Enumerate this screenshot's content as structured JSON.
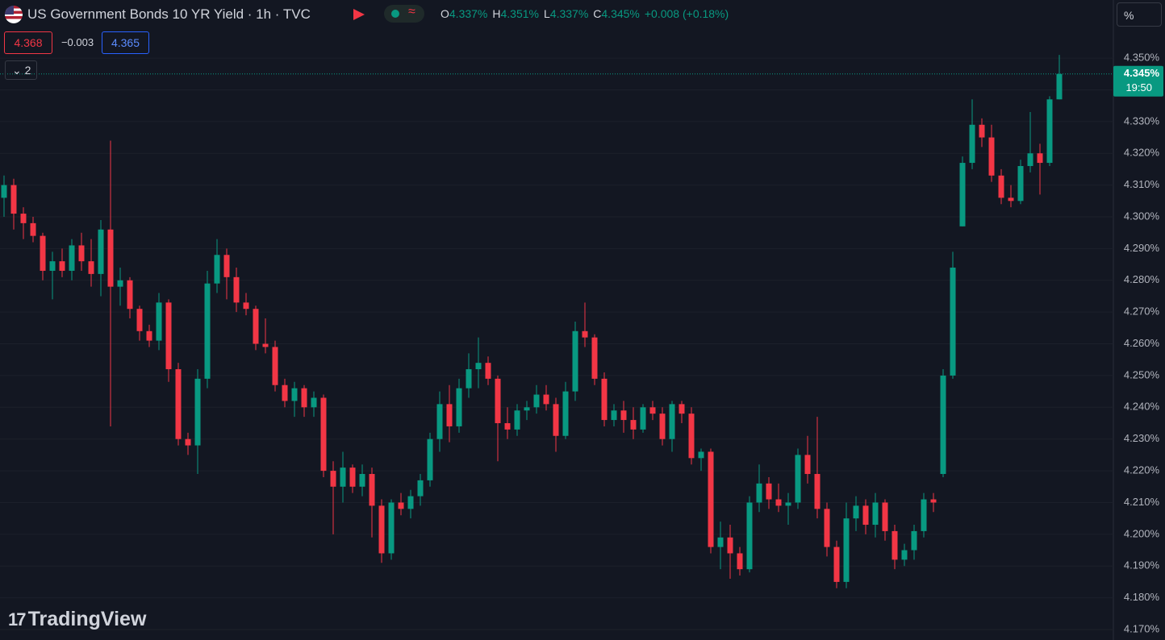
{
  "chart_data": {
    "type": "candlestick",
    "title": "US Government Bonds 10 YR Yield · 1h · TVC",
    "legend": [
      {
        "label": "O",
        "value": "4.337%"
      },
      {
        "label": "H",
        "value": "4.351%"
      },
      {
        "label": "L",
        "value": "4.337%"
      },
      {
        "label": "C",
        "value": "4.345%"
      }
    ],
    "change": "+0.008 (+0.18%)",
    "sell_price": "4.368",
    "spread": "−0.003",
    "buy_price": "4.365",
    "indicator_count": "2",
    "unit": "%",
    "last_price_label": "4.345%",
    "countdown": "19:50",
    "watermark": "TradingView",
    "up_color": "#089981",
    "down_color": "#f23645",
    "grid": true,
    "ylim": [
      4.1667,
      4.3683
    ],
    "yticks": [
      {
        "value": 4.17,
        "label": "4.170%"
      },
      {
        "value": 4.18,
        "label": "4.180%"
      },
      {
        "value": 4.19,
        "label": "4.190%"
      },
      {
        "value": 4.2,
        "label": "4.200%"
      },
      {
        "value": 4.21,
        "label": "4.210%"
      },
      {
        "value": 4.22,
        "label": "4.220%"
      },
      {
        "value": 4.23,
        "label": "4.230%"
      },
      {
        "value": 4.24,
        "label": "4.240%"
      },
      {
        "value": 4.25,
        "label": "4.250%"
      },
      {
        "value": 4.26,
        "label": "4.260%"
      },
      {
        "value": 4.27,
        "label": "4.270%"
      },
      {
        "value": 4.28,
        "label": "4.280%"
      },
      {
        "value": 4.29,
        "label": "4.290%"
      },
      {
        "value": 4.3,
        "label": "4.300%"
      },
      {
        "value": 4.31,
        "label": "4.310%"
      },
      {
        "value": 4.32,
        "label": "4.320%"
      },
      {
        "value": 4.33,
        "label": "4.330%"
      },
      {
        "value": 4.34,
        "label": "4.340%"
      },
      {
        "value": 4.35,
        "label": "4.350%"
      }
    ],
    "last_price": 4.345,
    "open": [
      4.306,
      4.31,
      4.301,
      4.298,
      4.294,
      4.283,
      4.286,
      4.283,
      4.291,
      4.286,
      4.282,
      4.296,
      4.278,
      4.28,
      4.271,
      4.264,
      4.261,
      4.273,
      4.252,
      4.23,
      4.228,
      4.249,
      4.279,
      4.288,
      4.281,
      4.273,
      4.271,
      4.26,
      4.259,
      4.247,
      4.242,
      4.246,
      4.24,
      4.243,
      4.22,
      4.215,
      4.221,
      4.215,
      4.219,
      4.209,
      4.194,
      4.21,
      4.208,
      4.212,
      4.217,
      4.23,
      4.241,
      4.234,
      4.246,
      4.252,
      4.254,
      4.249,
      4.235,
      4.233,
      4.239,
      4.24,
      4.244,
      4.241,
      4.231,
      4.245,
      4.264,
      4.262,
      4.249,
      4.236,
      4.239,
      4.236,
      4.233,
      4.24,
      4.238,
      4.23,
      4.241,
      4.238,
      4.224,
      4.226,
      4.196,
      4.199,
      4.194,
      4.189,
      4.21,
      4.216,
      4.211,
      4.209,
      4.21,
      4.225,
      4.219,
      4.208,
      4.196,
      4.185,
      4.205,
      4.209,
      4.203,
      4.21,
      4.201,
      4.192,
      4.195,
      4.201,
      4.211,
      4.219,
      4.25,
      4.297,
      4.317,
      4.329,
      4.325,
      4.313,
      4.306,
      4.305,
      4.316,
      4.32,
      4.317,
      4.337
    ],
    "high": [
      4.313,
      4.312,
      4.303,
      4.3,
      4.295,
      4.289,
      4.29,
      4.293,
      4.295,
      4.293,
      4.299,
      4.324,
      4.284,
      4.281,
      4.272,
      4.266,
      4.276,
      4.274,
      4.254,
      4.232,
      4.252,
      4.283,
      4.293,
      4.29,
      4.284,
      4.276,
      4.272,
      4.268,
      4.261,
      4.249,
      4.248,
      4.247,
      4.245,
      4.244,
      4.223,
      4.226,
      4.222,
      4.222,
      4.221,
      4.211,
      4.211,
      4.213,
      4.214,
      4.219,
      4.232,
      4.245,
      4.247,
      4.249,
      4.257,
      4.262,
      4.256,
      4.25,
      4.24,
      4.241,
      4.242,
      4.247,
      4.247,
      4.243,
      4.248,
      4.267,
      4.273,
      4.263,
      4.251,
      4.241,
      4.242,
      4.24,
      4.241,
      4.242,
      4.24,
      4.242,
      4.242,
      4.24,
      4.227,
      4.227,
      4.204,
      4.203,
      4.196,
      4.212,
      4.222,
      4.218,
      4.216,
      4.213,
      4.227,
      4.231,
      4.237,
      4.21,
      4.198,
      4.21,
      4.212,
      4.211,
      4.213,
      4.211,
      4.203,
      4.197,
      4.203,
      4.213,
      4.213,
      4.252,
      4.289,
      4.319,
      4.337,
      4.331,
      4.329,
      4.315,
      4.31,
      4.318,
      4.333,
      4.323,
      4.338,
      4.351
    ],
    "low": [
      4.3,
      4.296,
      4.293,
      4.292,
      4.28,
      4.274,
      4.281,
      4.28,
      4.283,
      4.278,
      4.275,
      4.234,
      4.272,
      4.268,
      4.261,
      4.259,
      4.258,
      4.248,
      4.228,
      4.225,
      4.219,
      4.246,
      4.276,
      4.274,
      4.27,
      4.269,
      4.258,
      4.257,
      4.245,
      4.24,
      4.237,
      4.237,
      4.237,
      4.218,
      4.2,
      4.21,
      4.213,
      4.212,
      4.199,
      4.191,
      4.192,
      4.206,
      4.205,
      4.209,
      4.215,
      4.226,
      4.229,
      4.232,
      4.243,
      4.246,
      4.247,
      4.223,
      4.23,
      4.231,
      4.236,
      4.238,
      4.239,
      4.226,
      4.23,
      4.242,
      4.259,
      4.247,
      4.234,
      4.234,
      4.232,
      4.23,
      4.232,
      4.236,
      4.228,
      4.226,
      4.235,
      4.222,
      4.22,
      4.194,
      4.189,
      4.186,
      4.187,
      4.188,
      4.207,
      4.208,
      4.207,
      4.203,
      4.208,
      4.216,
      4.205,
      4.193,
      4.183,
      4.183,
      4.201,
      4.2,
      4.199,
      4.198,
      4.189,
      4.19,
      4.192,
      4.199,
      4.207,
      4.218,
      4.249,
      4.297,
      4.315,
      4.322,
      4.311,
      4.304,
      4.303,
      4.304,
      4.314,
      4.307,
      4.316,
      4.337
    ],
    "close": [
      4.31,
      4.301,
      4.298,
      4.294,
      4.283,
      4.286,
      4.283,
      4.291,
      4.286,
      4.282,
      4.296,
      4.278,
      4.28,
      4.271,
      4.264,
      4.261,
      4.273,
      4.252,
      4.23,
      4.228,
      4.249,
      4.279,
      4.288,
      4.281,
      4.273,
      4.271,
      4.26,
      4.259,
      4.247,
      4.242,
      4.246,
      4.24,
      4.243,
      4.22,
      4.215,
      4.221,
      4.215,
      4.219,
      4.209,
      4.194,
      4.21,
      4.208,
      4.212,
      4.217,
      4.23,
      4.241,
      4.234,
      4.246,
      4.252,
      4.254,
      4.249,
      4.235,
      4.233,
      4.239,
      4.24,
      4.244,
      4.241,
      4.231,
      4.245,
      4.264,
      4.262,
      4.249,
      4.236,
      4.239,
      4.236,
      4.233,
      4.24,
      4.238,
      4.23,
      4.241,
      4.238,
      4.224,
      4.226,
      4.196,
      4.199,
      4.194,
      4.189,
      4.21,
      4.216,
      4.211,
      4.209,
      4.21,
      4.225,
      4.219,
      4.208,
      4.196,
      4.185,
      4.205,
      4.209,
      4.203,
      4.21,
      4.201,
      4.192,
      4.195,
      4.201,
      4.211,
      4.21,
      4.25,
      4.284,
      4.317,
      4.329,
      4.325,
      4.313,
      4.306,
      4.305,
      4.316,
      4.32,
      4.317,
      4.337,
      4.345
    ]
  }
}
